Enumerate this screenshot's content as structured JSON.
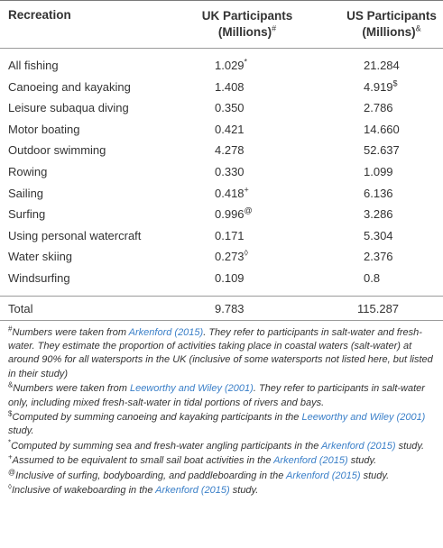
{
  "header": {
    "col1": "Recreation",
    "col2_line1": "UK Participants",
    "col2_line2": "(Millions)",
    "col2_mark": "#",
    "col3_line1": "US Participants",
    "col3_line2": "(Millions)",
    "col3_mark": "&"
  },
  "rows": [
    {
      "name": "All fishing",
      "uk": "1.029",
      "uk_mark": "*",
      "us": "21.284",
      "us_mark": ""
    },
    {
      "name": "Canoeing and kayaking",
      "uk": "1.408",
      "uk_mark": "",
      "us": "4.919",
      "us_mark": "$"
    },
    {
      "name": "Leisure subaqua diving",
      "uk": "0.350",
      "uk_mark": "",
      "us": "2.786",
      "us_mark": ""
    },
    {
      "name": "Motor boating",
      "uk": "0.421",
      "uk_mark": "",
      "us": "14.660",
      "us_mark": ""
    },
    {
      "name": "Outdoor swimming",
      "uk": "4.278",
      "uk_mark": "",
      "us": "52.637",
      "us_mark": ""
    },
    {
      "name": "Rowing",
      "uk": "0.330",
      "uk_mark": "",
      "us": "1.099",
      "us_mark": ""
    },
    {
      "name": "Sailing",
      "uk": "0.418",
      "uk_mark": "+",
      "us": "6.136",
      "us_mark": ""
    },
    {
      "name": "Surfing",
      "uk": "0.996",
      "uk_mark": "@",
      "us": "3.286",
      "us_mark": ""
    },
    {
      "name": "Using personal watercraft",
      "uk": "0.171",
      "uk_mark": "",
      "us": "5.304",
      "us_mark": ""
    },
    {
      "name": "Water skiing",
      "uk": "0.273",
      "uk_mark": "◊",
      "us": "2.376",
      "us_mark": ""
    },
    {
      "name": "Windsurfing",
      "uk": "0.109",
      "uk_mark": "",
      "us": "0.8",
      "us_mark": ""
    }
  ],
  "total": {
    "name": "Total",
    "uk": "9.783",
    "us": "115.287"
  },
  "notes": [
    {
      "mark": "#",
      "parts": [
        {
          "text": "Numbers were taken from ",
          "link": false
        },
        {
          "text": "Arkenford (2015)",
          "link": true
        },
        {
          "text": ". They refer to participants in salt-water and fresh-water. They estimate the proportion of activities taking place in coastal waters (salt-water) at around 90% for all watersports in the UK (inclusive of some watersports not listed here, but listed in their study)",
          "link": false
        }
      ]
    },
    {
      "mark": "&",
      "parts": [
        {
          "text": "Numbers were taken from ",
          "link": false
        },
        {
          "text": "Leeworthy and Wiley (2001)",
          "link": true
        },
        {
          "text": ". They refer to participants in salt-water only, including mixed fresh-salt-water in tidal portions of rivers and bays.",
          "link": false
        }
      ]
    },
    {
      "mark": "$",
      "parts": [
        {
          "text": "Computed by summing canoeing and kayaking participants in the ",
          "link": false
        },
        {
          "text": "Leeworthy and Wiley (2001)",
          "link": true
        },
        {
          "text": " study.",
          "link": false
        }
      ]
    },
    {
      "mark": "*",
      "parts": [
        {
          "text": "Computed by summing sea and fresh-water angling participants in the ",
          "link": false
        },
        {
          "text": "Arkenford (2015)",
          "link": true
        },
        {
          "text": " study.",
          "link": false
        }
      ]
    },
    {
      "mark": "+",
      "parts": [
        {
          "text": "Assumed to be equivalent to small sail boat activities in the ",
          "link": false
        },
        {
          "text": "Arkenford (2015)",
          "link": true
        },
        {
          "text": " study.",
          "link": false
        }
      ]
    },
    {
      "mark": "@",
      "parts": [
        {
          "text": "Inclusive of surfing, bodyboarding, and paddleboarding in the ",
          "link": false
        },
        {
          "text": "Arkenford (2015)",
          "link": true
        },
        {
          "text": " study.",
          "link": false
        }
      ]
    },
    {
      "mark": "◊",
      "parts": [
        {
          "text": "Inclusive of wakeboarding in the ",
          "link": false
        },
        {
          "text": "Arkenford (2015)",
          "link": true
        },
        {
          "text": " study.",
          "link": false
        }
      ]
    }
  ],
  "colors": {
    "link": "#3a7fc8",
    "text": "#333333",
    "rule": "#9a9a9a"
  }
}
